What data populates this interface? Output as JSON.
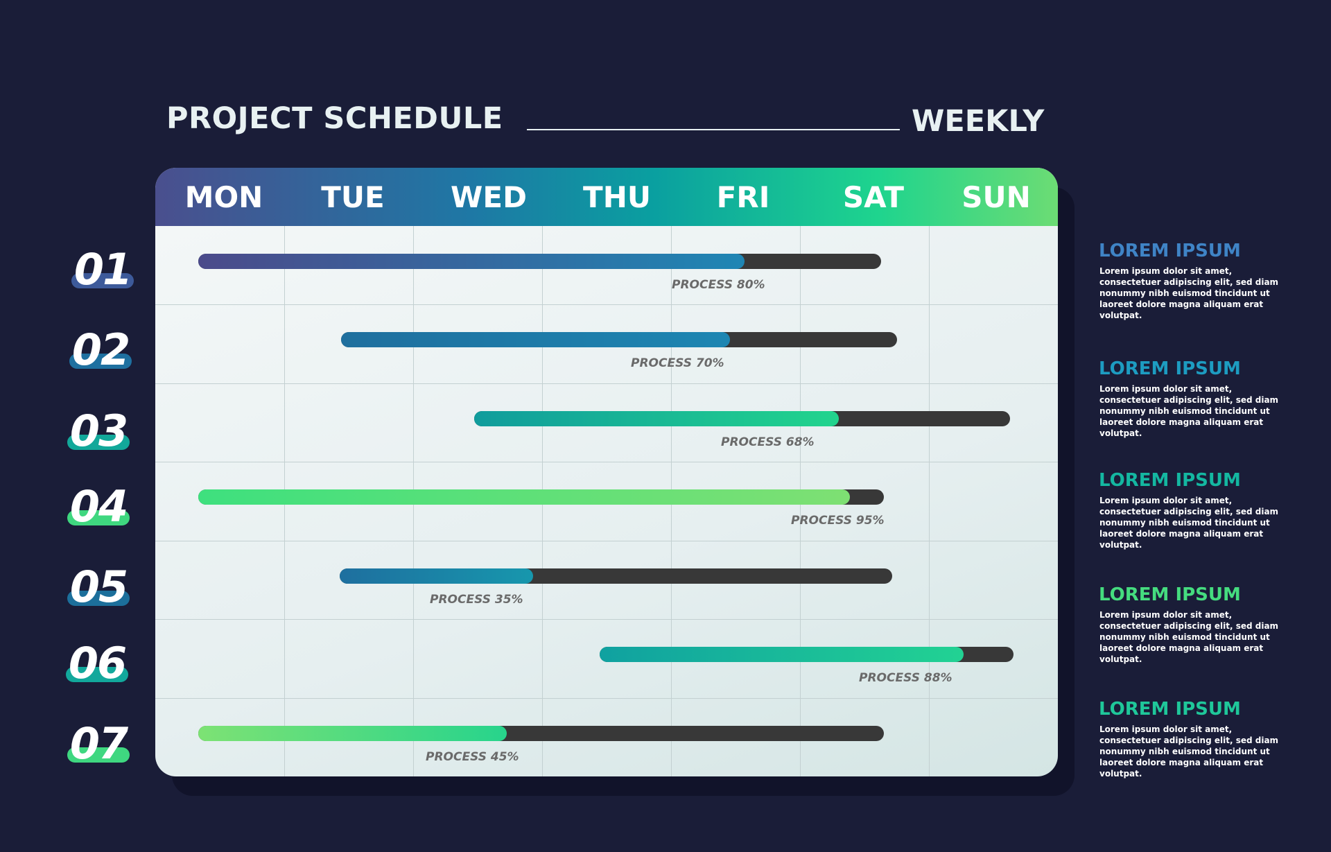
{
  "header": {
    "title": "PROJECT SCHEDULE",
    "subtitle": "WEEKLY"
  },
  "days": [
    "MON",
    "TUE",
    "WED",
    "THU",
    "FRI",
    "SAT",
    "SUN"
  ],
  "colors": {
    "background": "#1a1d38",
    "track": "#383838",
    "purple": "#4a4f8e",
    "blue": "#1e78a5",
    "teal": "#0fa69e",
    "green": "#45e08a"
  },
  "rows": [
    {
      "number": "01",
      "process_label": "PROCESS 80%",
      "progress": 0.8,
      "color_from": "#4b4a8a",
      "color_to": "#1f86b4",
      "pill": "#3d5a9a"
    },
    {
      "number": "02",
      "process_label": "PROCESS 70%",
      "progress": 0.7,
      "color_from": "#1f6f9e",
      "color_to": "#1d86b2",
      "pill": "#1e70a0"
    },
    {
      "number": "03",
      "process_label": "PROCESS 68%",
      "progress": 0.68,
      "color_from": "#109c9c",
      "color_to": "#22d48d",
      "pill": "#12a89a"
    },
    {
      "number": "04",
      "process_label": "PROCESS 95%",
      "progress": 0.95,
      "color_from": "#3ee07e",
      "color_to": "#7ee073",
      "pill": "#3fd77f"
    },
    {
      "number": "05",
      "process_label": "PROCESS 35%",
      "progress": 0.35,
      "color_from": "#1e6f9f",
      "color_to": "#1797ad",
      "pill": "#1c6f9b"
    },
    {
      "number": "06",
      "process_label": "PROCESS 88%",
      "progress": 0.88,
      "color_from": "#10a1a0",
      "color_to": "#22d293",
      "pill": "#12a89c"
    },
    {
      "number": "07",
      "process_label": "PROCESS 45%",
      "progress": 0.45,
      "color_from": "#7de274",
      "color_to": "#27d48c",
      "pill": "#3fd780"
    }
  ],
  "side": [
    {
      "title": "LOREM IPSUM",
      "color": "#3f84c6",
      "text": "Lorem ipsum dolor sit amet, consectetuer adipiscing elit, sed diam nonummy nibh euismod tincidunt ut laoreet dolore magna aliquam erat volutpat."
    },
    {
      "title": "LOREM IPSUM",
      "color": "#1d9cc1",
      "text": "Lorem ipsum dolor sit amet, consectetuer adipiscing elit, sed diam nonummy nibh euismod tincidunt ut laoreet dolore magna aliquam erat volutpat."
    },
    {
      "title": "LOREM IPSUM",
      "color": "#14b7a1",
      "text": "Lorem ipsum dolor sit amet, consectetuer adipiscing elit, sed diam nonummy nibh euismod tincidunt ut laoreet dolore magna aliquam erat volutpat."
    },
    {
      "title": "LOREM IPSUM",
      "color": "#45dc7f",
      "text": "Lorem ipsum dolor sit amet, consectetuer adipiscing elit, sed diam nonummy nibh euismod tincidunt ut laoreet dolore magna aliquam erat volutpat."
    },
    {
      "title": "LOREM IPSUM",
      "color": "#1fc79a",
      "text": "Lorem ipsum dolor sit amet, consectetuer adipiscing elit, sed diam nonummy nibh euismod tincidunt ut laoreet dolore magna aliquam erat volutpat."
    }
  ],
  "chart_data": {
    "type": "table",
    "categories": [
      "01",
      "02",
      "03",
      "04",
      "05",
      "06",
      "07"
    ],
    "columns": [
      "MON",
      "TUE",
      "WED",
      "THU",
      "FRI",
      "SAT",
      "SUN"
    ],
    "series": [
      {
        "values": [
          80,
          70,
          68,
          95,
          35,
          88,
          45
        ]
      }
    ],
    "process_labels": [
      "PROCESS 80%",
      "PROCESS 70%",
      "PROCESS 68%",
      "PROCESS 95%",
      "PROCESS 35%",
      "PROCESS 88%",
      "PROCESS 45%"
    ],
    "title": "PROJECT SCHEDULE",
    "subtitle": "WEEKLY"
  }
}
